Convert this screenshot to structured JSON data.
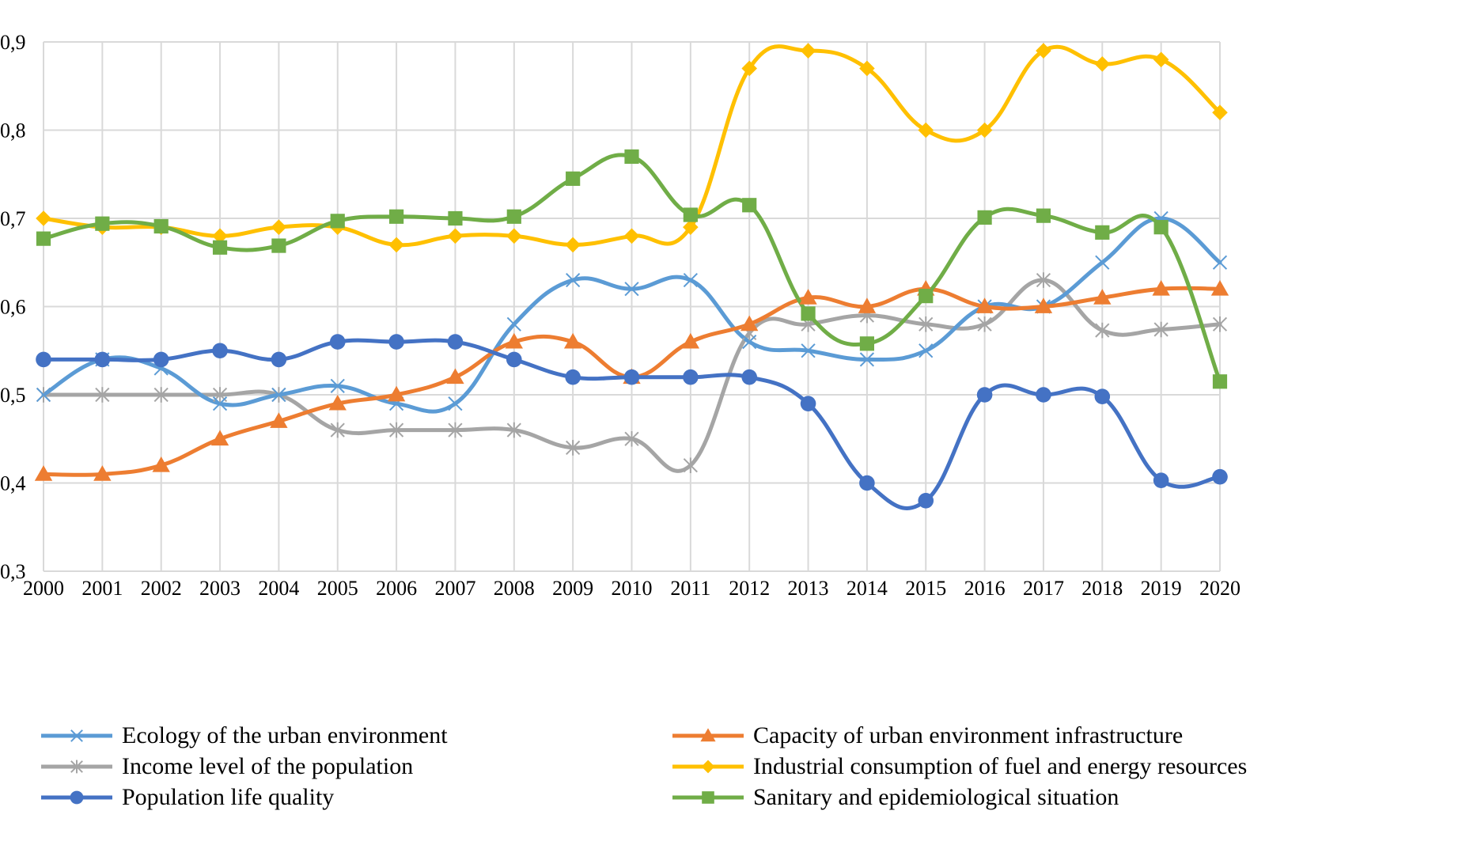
{
  "chart_data": {
    "type": "line",
    "title": "",
    "xlabel": "",
    "ylabel": "",
    "smoothed": true,
    "grid": "both",
    "legend_position": "bottom",
    "ylim": [
      0.3,
      0.9
    ],
    "yticks": [
      "0,3",
      "0,4",
      "0,5",
      "0,6",
      "0,7",
      "0,8",
      "0,9"
    ],
    "ytick_values": [
      0.3,
      0.4,
      0.5,
      0.6,
      0.7,
      0.8,
      0.9
    ],
    "x": [
      "2000",
      "2001",
      "2002",
      "2003",
      "2004",
      "2005",
      "2006",
      "2007",
      "2008",
      "2009",
      "2010",
      "2011",
      "2012",
      "2013",
      "2014",
      "2015",
      "2016",
      "2017",
      "2018",
      "2019",
      "2020"
    ],
    "series": [
      {
        "name": "Ecology of the urban environment",
        "color": "#5B9BD5",
        "marker": "x",
        "values": [
          0.5,
          0.54,
          0.53,
          0.49,
          0.5,
          0.51,
          0.49,
          0.49,
          0.58,
          0.63,
          0.62,
          0.63,
          0.56,
          0.55,
          0.54,
          0.55,
          0.6,
          0.6,
          0.65,
          0.7,
          0.65
        ]
      },
      {
        "name": "Capacity of urban environment infrastructure",
        "color": "#ED7D31",
        "marker": "triangle",
        "values": [
          0.41,
          0.41,
          0.42,
          0.45,
          0.47,
          0.49,
          0.5,
          0.52,
          0.56,
          0.56,
          0.52,
          0.56,
          0.58,
          0.61,
          0.6,
          0.62,
          0.6,
          0.6,
          0.61,
          0.62,
          0.62
        ]
      },
      {
        "name": "Income level of the population",
        "color": "#A5A5A5",
        "marker": "star",
        "values": [
          0.5,
          0.5,
          0.5,
          0.5,
          0.5,
          0.46,
          0.46,
          0.46,
          0.46,
          0.44,
          0.45,
          0.42,
          0.57,
          0.58,
          0.59,
          0.58,
          0.58,
          0.63,
          0.573,
          0.574,
          0.58
        ]
      },
      {
        "name": "Industrial consumption of fuel and energy resources",
        "color": "#FFC000",
        "marker": "diamond",
        "values": [
          0.7,
          0.69,
          0.69,
          0.68,
          0.69,
          0.69,
          0.67,
          0.68,
          0.68,
          0.67,
          0.68,
          0.69,
          0.87,
          0.89,
          0.87,
          0.8,
          0.8,
          0.89,
          0.875,
          0.88,
          0.82
        ]
      },
      {
        "name": "Population life quality",
        "color": "#4472C4",
        "marker": "circle",
        "values": [
          0.54,
          0.54,
          0.54,
          0.55,
          0.54,
          0.56,
          0.56,
          0.56,
          0.54,
          0.52,
          0.52,
          0.52,
          0.52,
          0.49,
          0.4,
          0.38,
          0.5,
          0.5,
          0.498,
          0.403,
          0.407
        ]
      },
      {
        "name": "Sanitary and epidemiological situation",
        "color": "#70AD47",
        "marker": "square",
        "values": [
          0.677,
          0.694,
          0.691,
          0.667,
          0.669,
          0.697,
          0.702,
          0.7,
          0.702,
          0.745,
          0.77,
          0.704,
          0.715,
          0.592,
          0.558,
          0.612,
          0.701,
          0.703,
          0.684,
          0.69,
          0.515
        ]
      }
    ]
  }
}
